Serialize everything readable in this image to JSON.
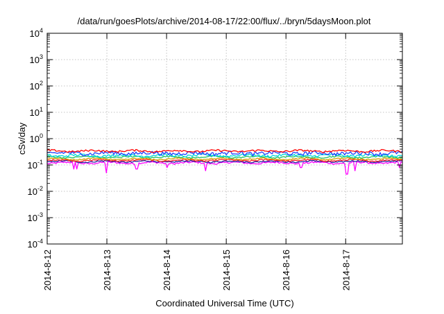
{
  "chart_data": {
    "type": "line",
    "title": "/data/run/goesPlots/archive/2014-08-17/22:00/flux/../bryn/5daysMoon.plot",
    "xlabel": "Coordinated Universal Time (UTC)",
    "ylabel": "cSv/day",
    "y_scale": "log",
    "ylim_exponents": [
      -4,
      4
    ],
    "y_ticks": [
      {
        "base": "10",
        "exp": "-4"
      },
      {
        "base": "10",
        "exp": "-3"
      },
      {
        "base": "10",
        "exp": "-2"
      },
      {
        "base": "10",
        "exp": "-1"
      },
      {
        "base": "10",
        "exp": "0"
      },
      {
        "base": "10",
        "exp": "1"
      },
      {
        "base": "10",
        "exp": "2"
      },
      {
        "base": "10",
        "exp": "3"
      },
      {
        "base": "10",
        "exp": "4"
      }
    ],
    "x_range_days": [
      0,
      5.95
    ],
    "x_ticks": [
      {
        "day": 0,
        "label": "2014-8-12"
      },
      {
        "day": 1,
        "label": "2014-8-13"
      },
      {
        "day": 2,
        "label": "2014-8-14"
      },
      {
        "day": 3,
        "label": "2014-8-15"
      },
      {
        "day": 4,
        "label": "2014-8-16"
      },
      {
        "day": 5,
        "label": "2014-8-17"
      }
    ],
    "grid": true,
    "legend": "none",
    "series": [
      {
        "color": "#ff00ff",
        "base": 0.12,
        "noise": 0.08,
        "dips": [
          [
            0.45,
            0.07
          ],
          [
            0.5,
            0.07
          ],
          [
            1.0,
            0.05
          ],
          [
            1.5,
            0.07
          ],
          [
            2.0,
            0.08
          ],
          [
            2.65,
            0.06
          ],
          [
            4.25,
            0.08
          ],
          [
            5.02,
            0.045
          ],
          [
            5.15,
            0.06
          ],
          [
            5.9,
            0.08
          ]
        ]
      },
      {
        "color": "#1f1f9f",
        "base": 0.135,
        "noise": 0.06,
        "dips": []
      },
      {
        "color": "#ff2020",
        "base": 0.15,
        "noise": 0.06,
        "dips": []
      },
      {
        "color": "#d0a000",
        "base": 0.17,
        "noise": 0.05,
        "dips": []
      },
      {
        "color": "#20c060",
        "base": 0.2,
        "noise": 0.06,
        "dips": []
      },
      {
        "color": "#00d8d8",
        "base": 0.23,
        "noise": 0.1,
        "dips": []
      },
      {
        "color": "#2040ff",
        "base": 0.28,
        "noise": 0.16,
        "dips": []
      },
      {
        "color": "#ff0000",
        "base": 0.34,
        "noise": 0.08,
        "dips": []
      }
    ]
  }
}
